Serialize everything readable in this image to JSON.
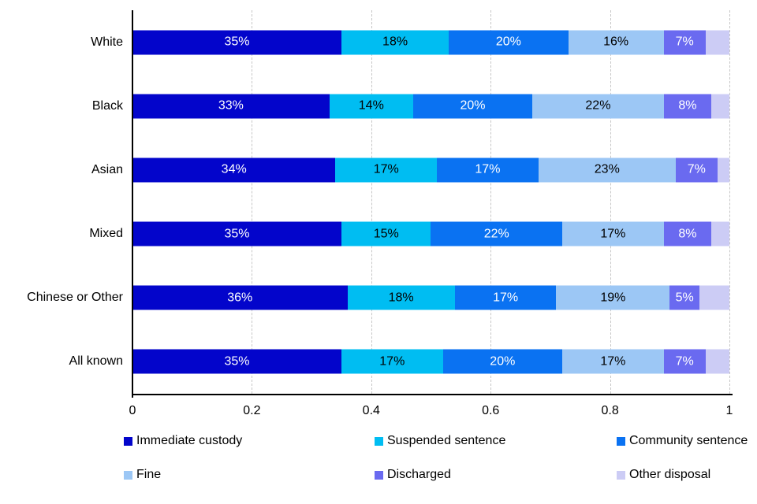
{
  "chart_data": {
    "type": "bar",
    "variant": "horizontal-stacked",
    "title": "",
    "xlabel": "",
    "ylabel": "",
    "categories": [
      "White",
      "Black",
      "Asian",
      "Mixed",
      "Chinese or Other",
      "All known"
    ],
    "series": [
      {
        "name": "Immediate custody",
        "color": "#0305cb",
        "label_color": "#ffffff",
        "show_labels": true,
        "values": [
          35,
          33,
          34,
          35,
          36,
          35
        ]
      },
      {
        "name": "Suspended sentence",
        "color": "#00bdf2",
        "label_color": "#000000",
        "show_labels": true,
        "values": [
          18,
          14,
          17,
          15,
          18,
          17
        ]
      },
      {
        "name": "Community sentence",
        "color": "#0a72f2",
        "label_color": "#ffffff",
        "show_labels": true,
        "values": [
          20,
          20,
          17,
          22,
          17,
          20
        ]
      },
      {
        "name": "Fine",
        "color": "#9cc7f5",
        "label_color": "#000000",
        "show_labels": true,
        "values": [
          16,
          22,
          23,
          17,
          19,
          17
        ]
      },
      {
        "name": "Discharged",
        "color": "#6a6af0",
        "label_color": "#ffffff",
        "show_labels": true,
        "values": [
          7,
          8,
          7,
          8,
          5,
          7
        ]
      },
      {
        "name": "Other disposal",
        "color": "#ccccf5",
        "label_color": "#000000",
        "show_labels": false,
        "values": [
          4,
          3,
          2,
          3,
          5,
          4
        ]
      }
    ],
    "value_suffix": "%",
    "xlim": [
      0,
      1
    ],
    "x_ticks": [
      "0",
      "0.2",
      "0.4",
      "0.6",
      "0.8",
      "1"
    ],
    "grid": true,
    "gridline_color": "#c6c6c6",
    "axis_color": "#000000",
    "legend_position": "bottom"
  }
}
